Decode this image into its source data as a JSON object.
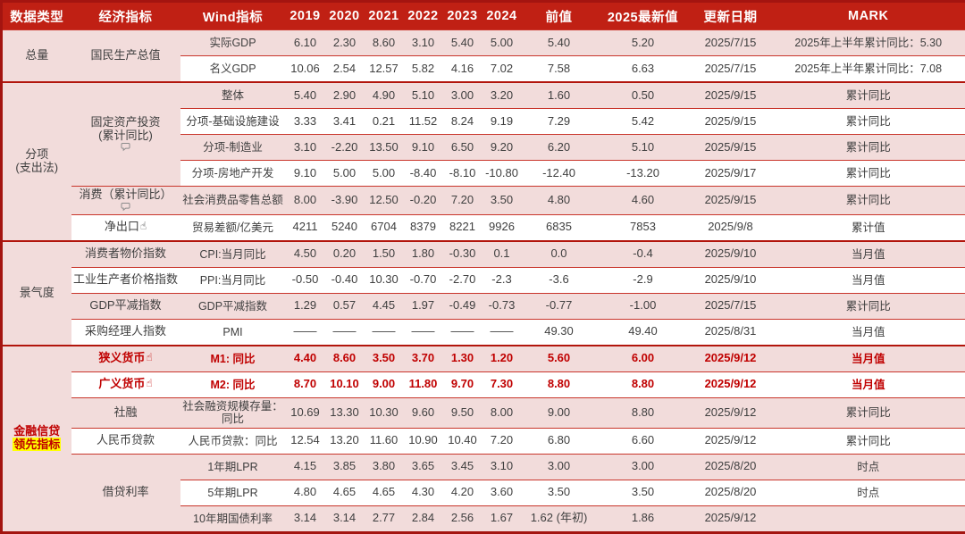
{
  "table": {
    "columns": [
      "数据类型",
      "经济指标",
      "Wind指标",
      "2019",
      "2020",
      "2021",
      "2022",
      "2023",
      "2024",
      "前值",
      "2025最新值",
      "更新日期",
      "MARK"
    ],
    "icons": {
      "hand": "☝"
    },
    "colors": {
      "header_bg": "#C02014",
      "outer_border": "#A41410",
      "row_pink": "#F2DCDB",
      "row_line": "#C9352B",
      "text": "#404040",
      "accent_red": "#C00000",
      "highlight_yellow": "#FFFF00"
    },
    "rows": [
      {
        "shade": "pink",
        "type_cell": {
          "rowspan": 2,
          "lines": [
            "总量"
          ]
        },
        "ind_cell": {
          "rowspan": 2,
          "lines": [
            "国民生产总值"
          ]
        },
        "wind": {
          "lines": [
            "实际GDP"
          ]
        },
        "values": [
          "6.10",
          "2.30",
          "8.60",
          "3.10",
          "5.40",
          "5.00"
        ],
        "prev": "5.40",
        "latest": "5.20",
        "date": "2025/7/15",
        "mark": "2025年上半年累计同比：5.30"
      },
      {
        "shade": "white",
        "wind": {
          "lines": [
            "名义GDP"
          ]
        },
        "values": [
          "10.06",
          "2.54",
          "12.57",
          "5.82",
          "4.16",
          "7.02"
        ],
        "prev": "7.58",
        "latest": "6.63",
        "date": "2025/7/15",
        "mark": "2025年上半年累计同比：7.08"
      },
      {
        "shade": "pink",
        "section_start": true,
        "type_cell": {
          "rowspan": 6,
          "lines": [
            "分项",
            "(支出法)"
          ]
        },
        "ind_cell": {
          "rowspan": 4,
          "lines": [
            "固定资产投资",
            "(累计同比)"
          ],
          "icon": {
            "glyph": "bubble",
            "pos": "below"
          }
        },
        "wind": {
          "lines": [
            "整体"
          ]
        },
        "values": [
          "5.40",
          "2.90",
          "4.90",
          "5.10",
          "3.00",
          "3.20"
        ],
        "prev": "1.60",
        "latest": "0.50",
        "date": "2025/9/15",
        "mark": "累计同比"
      },
      {
        "shade": "white",
        "wind": {
          "lines": [
            "分项-基础设施建设"
          ]
        },
        "values": [
          "3.33",
          "3.41",
          "0.21",
          "11.52",
          "8.24",
          "9.19"
        ],
        "prev": "7.29",
        "latest": "5.42",
        "date": "2025/9/15",
        "mark": "累计同比"
      },
      {
        "shade": "pink",
        "wind": {
          "lines": [
            "分项-制造业"
          ]
        },
        "values": [
          "3.10",
          "-2.20",
          "13.50",
          "9.10",
          "6.50",
          "9.20"
        ],
        "prev": "6.20",
        "latest": "5.10",
        "date": "2025/9/15",
        "mark": "累计同比"
      },
      {
        "shade": "white",
        "wind": {
          "lines": [
            "分项-房地产开发"
          ]
        },
        "values": [
          "9.10",
          "5.00",
          "5.00",
          "-8.40",
          "-8.10",
          "-10.80"
        ],
        "prev": "-12.40",
        "latest": "-13.20",
        "date": "2025/9/17",
        "mark": "累计同比"
      },
      {
        "shade": "pink",
        "ind_cell": {
          "rowspan": 1,
          "lines": [
            "消费（累计同比）"
          ],
          "icon": {
            "glyph": "bubble",
            "pos": "below"
          }
        },
        "wind": {
          "lines": [
            "社会消费品零售总额"
          ]
        },
        "values": [
          "8.00",
          "-3.90",
          "12.50",
          "-0.20",
          "7.20",
          "3.50"
        ],
        "prev": "4.80",
        "latest": "4.60",
        "date": "2025/9/15",
        "mark": "累计同比"
      },
      {
        "shade": "white",
        "ind_cell": {
          "rowspan": 1,
          "lines": [
            "净出口"
          ],
          "icon": {
            "glyph": "hand",
            "pos": "inline"
          }
        },
        "wind": {
          "lines": [
            "贸易差额/亿美元"
          ]
        },
        "values": [
          "4211",
          "5240",
          "6704",
          "8379",
          "8221",
          "9926"
        ],
        "prev": "6835",
        "latest": "7853",
        "date": "2025/9/8",
        "mark": "累计值"
      },
      {
        "shade": "pink",
        "section_start": true,
        "type_cell": {
          "rowspan": 4,
          "lines": [
            "景气度"
          ]
        },
        "ind_cell": {
          "rowspan": 1,
          "lines": [
            "消费者物价指数"
          ]
        },
        "wind": {
          "lines": [
            "CPI:当月同比"
          ]
        },
        "values": [
          "4.50",
          "0.20",
          "1.50",
          "1.80",
          "-0.30",
          "0.1"
        ],
        "prev": "0.0",
        "latest": "-0.4",
        "date": "2025/9/10",
        "mark": "当月值"
      },
      {
        "shade": "white",
        "ind_cell": {
          "rowspan": 1,
          "lines": [
            "工业生产者价格指数"
          ]
        },
        "wind": {
          "lines": [
            "PPI:当月同比"
          ]
        },
        "values": [
          "-0.50",
          "-0.40",
          "10.30",
          "-0.70",
          "-2.70",
          "-2.3"
        ],
        "prev": "-3.6",
        "latest": "-2.9",
        "date": "2025/9/10",
        "mark": "当月值"
      },
      {
        "shade": "pink",
        "ind_cell": {
          "rowspan": 1,
          "lines": [
            "GDP平减指数"
          ]
        },
        "wind": {
          "lines": [
            "GDP平减指数"
          ]
        },
        "values": [
          "1.29",
          "0.57",
          "4.45",
          "1.97",
          "-0.49",
          "-0.73"
        ],
        "prev": "-0.77",
        "latest": "-1.00",
        "date": "2025/7/15",
        "mark": "累计同比"
      },
      {
        "shade": "white",
        "ind_cell": {
          "rowspan": 1,
          "lines": [
            "采购经理人指数"
          ]
        },
        "wind": {
          "lines": [
            "PMI"
          ]
        },
        "values": [
          "——",
          "——",
          "——",
          "——",
          "——",
          "——"
        ],
        "prev": "49.30",
        "latest": "49.40",
        "date": "2025/8/31",
        "mark": "当月值"
      },
      {
        "shade": "pink",
        "section_start": true,
        "red": true,
        "type_cell": {
          "rowspan": 7,
          "lines": [
            "金融信贷",
            "领先指标"
          ],
          "highlight_line": 1
        },
        "ind_cell": {
          "rowspan": 1,
          "lines": [
            "狭义货币"
          ],
          "icon": {
            "glyph": "hand",
            "pos": "inline"
          }
        },
        "wind": {
          "lines": [
            "M1: 同比"
          ]
        },
        "values": [
          "4.40",
          "8.60",
          "3.50",
          "3.70",
          "1.30",
          "1.20"
        ],
        "prev": "5.60",
        "latest": "6.00",
        "date": "2025/9/12",
        "mark": "当月值"
      },
      {
        "shade": "white",
        "red": true,
        "ind_cell": {
          "rowspan": 1,
          "lines": [
            "广义货币"
          ],
          "icon": {
            "glyph": "hand",
            "pos": "inline"
          }
        },
        "wind": {
          "lines": [
            "M2: 同比"
          ]
        },
        "values": [
          "8.70",
          "10.10",
          "9.00",
          "11.80",
          "9.70",
          "7.30"
        ],
        "prev": "8.80",
        "latest": "8.80",
        "date": "2025/9/12",
        "mark": "当月值"
      },
      {
        "shade": "pink",
        "ind_cell": {
          "rowspan": 1,
          "lines": [
            "社融"
          ]
        },
        "wind": {
          "lines": [
            "社会融资规模存量：",
            "同比"
          ]
        },
        "values": [
          "10.69",
          "13.30",
          "10.30",
          "9.60",
          "9.50",
          "8.00"
        ],
        "prev": "9.00",
        "latest": "8.80",
        "date": "2025/9/12",
        "mark": "累计同比"
      },
      {
        "shade": "white",
        "ind_cell": {
          "rowspan": 1,
          "lines": [
            "人民币贷款"
          ]
        },
        "wind": {
          "lines": [
            "人民币贷款：同比"
          ]
        },
        "values": [
          "12.54",
          "13.20",
          "11.60",
          "10.90",
          "10.40",
          "7.20"
        ],
        "prev": "6.80",
        "latest": "6.60",
        "date": "2025/9/12",
        "mark": "累计同比"
      },
      {
        "shade": "pink",
        "ind_cell": {
          "rowspan": 3,
          "lines": [
            "借贷利率"
          ]
        },
        "wind": {
          "lines": [
            "1年期LPR"
          ]
        },
        "values": [
          "4.15",
          "3.85",
          "3.80",
          "3.65",
          "3.45",
          "3.10"
        ],
        "prev": "3.00",
        "latest": "3.00",
        "date": "2025/8/20",
        "mark": "时点"
      },
      {
        "shade": "white",
        "wind": {
          "lines": [
            "5年期LPR"
          ]
        },
        "values": [
          "4.80",
          "4.65",
          "4.65",
          "4.30",
          "4.20",
          "3.60"
        ],
        "prev": "3.50",
        "latest": "3.50",
        "date": "2025/8/20",
        "mark": "时点"
      },
      {
        "shade": "pink",
        "wind": {
          "lines": [
            "10年期国债利率"
          ]
        },
        "values": [
          "3.14",
          "3.14",
          "2.77",
          "2.84",
          "2.56",
          "1.67"
        ],
        "prev": "1.62 (年初)",
        "latest": "1.86",
        "date": "2025/9/12",
        "mark": ""
      }
    ]
  }
}
